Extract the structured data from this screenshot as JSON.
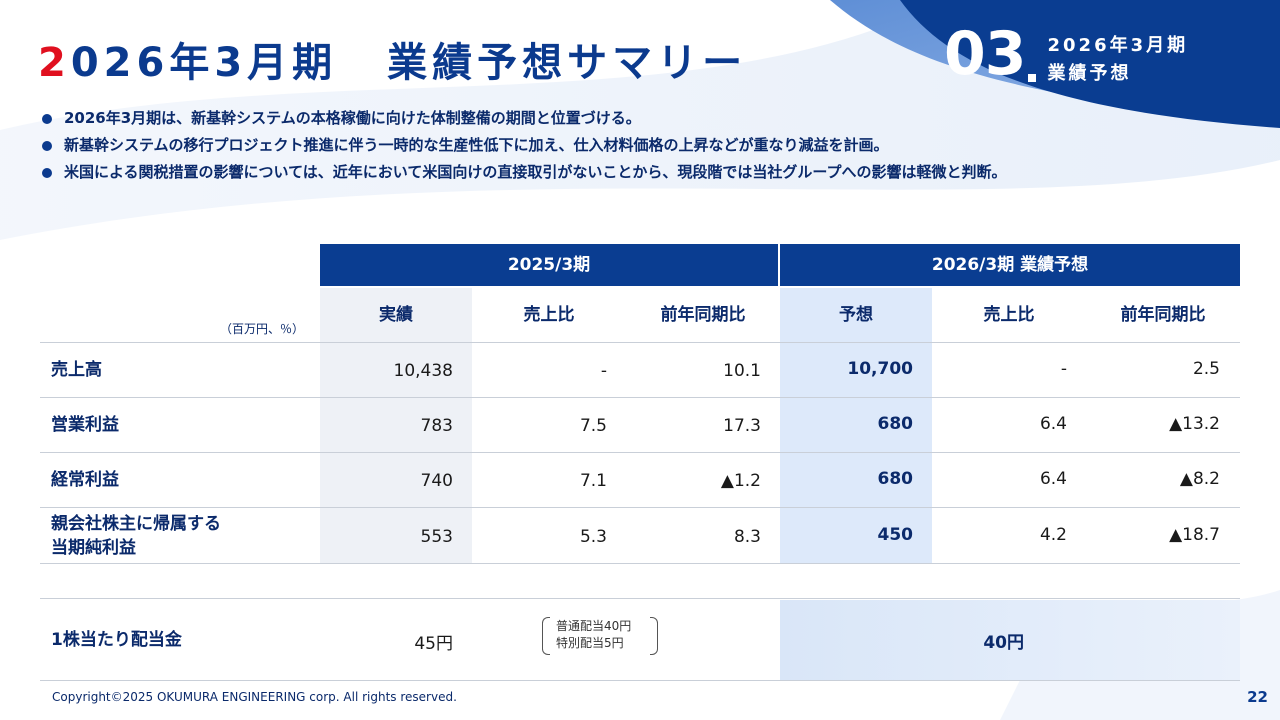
{
  "header": {
    "title_first": "2",
    "title_rest": "026年3月期",
    "title_second": "業績予想サマリー",
    "section_number": "03",
    "section_line1": "2026年3月期",
    "section_line2": "業績予想"
  },
  "bullets": [
    "2026年3月期は、新基幹システムの本格稼働に向けた体制整備の期間と位置づける。",
    "新基幹システムの移行プロジェクト推進に伴う一時的な生産性低下に加え、仕入材料価格の上昇などが重なり減益を計画。",
    "米国による関税措置の影響については、近年において米国向けの直接取引がないことから、現段階では当社グループへの影響は軽微と判断。"
  ],
  "table": {
    "unit": "（百万円、％）",
    "group_headers": [
      "2025/3期",
      "2026/3期 業績予想"
    ],
    "col_headers": [
      "実績",
      "売上比",
      "前年同期比",
      "予想",
      "売上比",
      "前年同期比"
    ],
    "rows": [
      {
        "label": "売上高",
        "values": [
          "10,438",
          "-",
          "10.1",
          "10,700",
          "-",
          "2.5"
        ]
      },
      {
        "label": "営業利益",
        "values": [
          "783",
          "7.5",
          "17.3",
          "680",
          "6.4",
          "▲13.2"
        ]
      },
      {
        "label": "経常利益",
        "values": [
          "740",
          "7.1",
          "▲1.2",
          "680",
          "6.4",
          "▲8.2"
        ]
      },
      {
        "label_line1": "親会社株主に帰属する",
        "label_line2": "当期純利益",
        "values": [
          "553",
          "5.3",
          "8.3",
          "450",
          "4.2",
          "▲18.7"
        ]
      }
    ],
    "dividend": {
      "label": "1株当たり配当金",
      "actual": "45円",
      "note_line1": "普通配当40円",
      "note_line2": "特別配当5円",
      "forecast": "40円"
    }
  },
  "footer": {
    "copyright": "Copyright©2025 OKUMURA ENGINEERING corp. All rights reserved.",
    "page": "22"
  },
  "colors": {
    "navy": "#0a3d91",
    "red": "#e0101f",
    "highlight_blue": "#dde9fa"
  }
}
